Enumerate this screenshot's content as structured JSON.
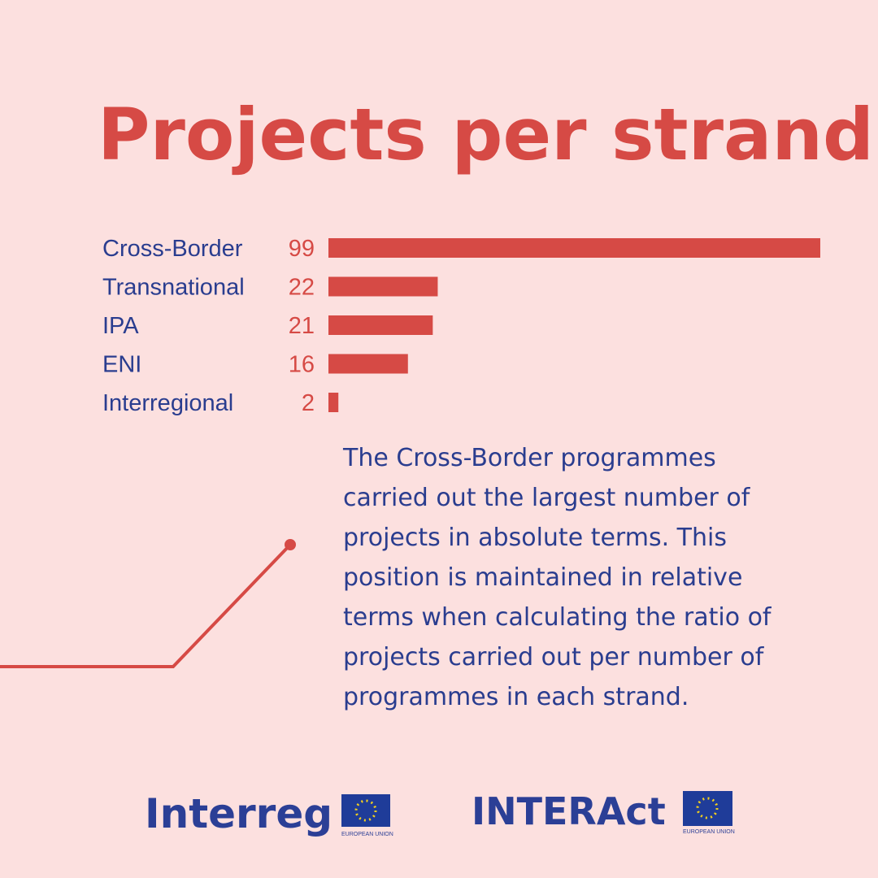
{
  "chart_data": {
    "type": "hbar",
    "title": "Projects per strand",
    "categories": [
      "Cross-Border",
      "Transnational",
      "IPA",
      "ENI",
      "Interregional"
    ],
    "values": [
      99,
      22,
      21,
      16,
      2
    ],
    "color": "#d64a45",
    "annotation": [
      "The Cross-Border programmes",
      "carried out the largest number of",
      "projects in absolute terms. This",
      "position is maintained in relative",
      "terms when calculating the ratio of",
      "projects carried out per number of",
      "programmes in each strand."
    ]
  },
  "footer": {
    "logos": [
      "Interreg",
      "INTERAct"
    ],
    "flag_caption": "EUROPEAN UNION"
  }
}
